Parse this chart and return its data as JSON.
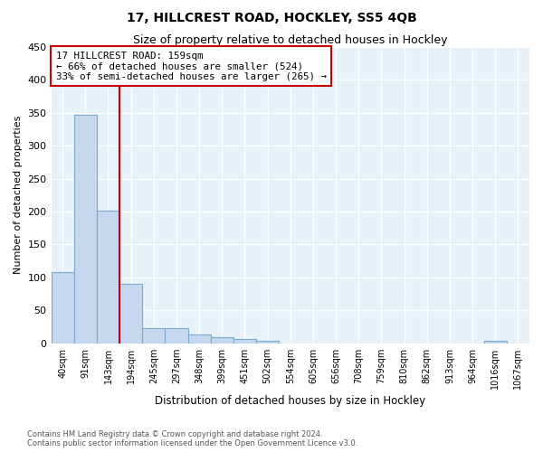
{
  "title": "17, HILLCREST ROAD, HOCKLEY, SS5 4QB",
  "subtitle": "Size of property relative to detached houses in Hockley",
  "xlabel": "Distribution of detached houses by size in Hockley",
  "ylabel": "Number of detached properties",
  "categories": [
    "40sqm",
    "91sqm",
    "143sqm",
    "194sqm",
    "245sqm",
    "297sqm",
    "348sqm",
    "399sqm",
    "451sqm",
    "502sqm",
    "554sqm",
    "605sqm",
    "656sqm",
    "708sqm",
    "759sqm",
    "810sqm",
    "862sqm",
    "913sqm",
    "964sqm",
    "1016sqm",
    "1067sqm"
  ],
  "values": [
    108,
    347,
    202,
    90,
    23,
    23,
    13,
    9,
    6,
    4,
    0,
    0,
    0,
    0,
    0,
    0,
    0,
    0,
    0,
    4,
    0
  ],
  "bar_color": "#c5d8ef",
  "bar_edge_color": "#7aaad0",
  "background_color": "#e8f0f8",
  "red_line_x": 2.5,
  "annotation_line1": "17 HILLCREST ROAD: 159sqm",
  "annotation_line2": "← 66% of detached houses are smaller (524)",
  "annotation_line3": "33% of semi-detached houses are larger (265) →",
  "annotation_box_facecolor": "#ffffff",
  "annotation_box_edgecolor": "#cc0000",
  "ylim": [
    0,
    450
  ],
  "yticks": [
    0,
    50,
    100,
    150,
    200,
    250,
    300,
    350,
    400,
    450
  ],
  "footer1": "Contains HM Land Registry data © Crown copyright and database right 2024.",
  "footer2": "Contains public sector information licensed under the Open Government Licence v3.0."
}
